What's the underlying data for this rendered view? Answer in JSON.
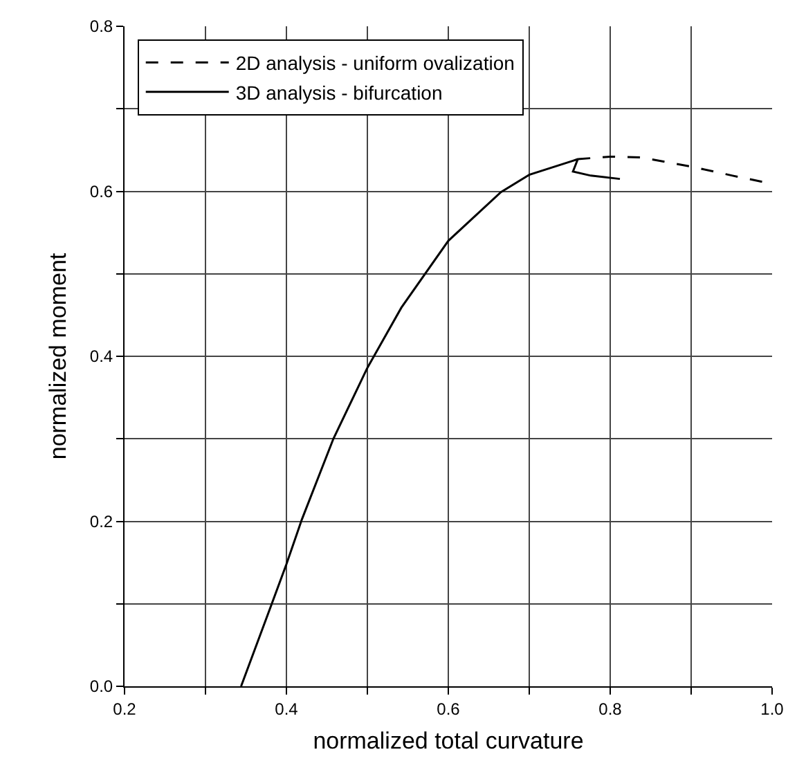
{
  "chart_data": {
    "type": "line",
    "xlabel": "normalized total curvature",
    "ylabel": "normalized moment",
    "xlim": [
      0.2,
      1.0
    ],
    "ylim": [
      0,
      0.8
    ],
    "xticks": [
      0.2,
      {
        "value": 0.3,
        "label": null
      },
      0.4,
      {
        "value": 0.5,
        "label": null
      },
      0.6,
      {
        "value": 0.7,
        "label": null
      },
      0.8,
      {
        "value": 0.9,
        "label": null
      },
      {
        "value": 1.0,
        "label": "1.0"
      }
    ],
    "yticks": [
      {
        "value": 0,
        "label": "0.0"
      },
      {
        "value": 0.1,
        "label": null
      },
      0.2,
      {
        "value": 0.3,
        "label": null
      },
      0.4,
      {
        "value": 0.5,
        "label": null
      },
      0.6,
      {
        "value": 0.7,
        "label": null
      },
      0.8
    ],
    "grid": true,
    "legend": "top left",
    "marker": "none",
    "series": [
      {
        "name": "2D analysis - uniform ovalization",
        "color": "#000000",
        "line_style": "dashed",
        "x": [
          0.76,
          0.8,
          0.838,
          0.9,
          0.951,
          1.0
        ],
        "values": [
          0.639,
          0.642,
          0.641,
          0.63,
          0.619,
          0.609
        ]
      },
      {
        "name": "3D analysis - bifurcation",
        "color": "#000000",
        "line_style": "solid",
        "x": [
          0.344,
          0.38,
          0.4,
          0.419,
          0.458,
          0.5,
          0.542,
          0.6,
          0.665,
          0.7,
          0.754,
          0.76,
          0.754,
          0.776,
          0.812
        ],
        "values": [
          0,
          0.095,
          0.148,
          0.202,
          0.3,
          0.386,
          0.459,
          0.54,
          0.599,
          0.62,
          0.637,
          0.639,
          0.624,
          0.619,
          0.615
        ]
      }
    ]
  }
}
